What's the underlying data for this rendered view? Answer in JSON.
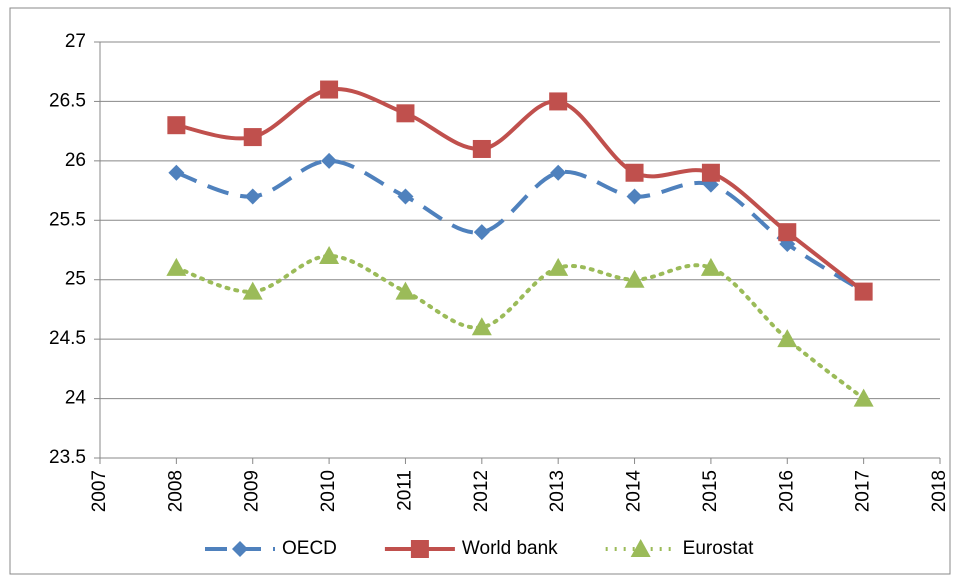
{
  "chart_data": {
    "type": "line",
    "x": [
      2008,
      2009,
      2010,
      2011,
      2012,
      2013,
      2014,
      2015,
      2016,
      2017
    ],
    "series": [
      {
        "name": "OECD",
        "color": "#4f81bd",
        "line_style": "dashed",
        "marker": "diamond",
        "values": [
          25.9,
          25.7,
          26.0,
          25.7,
          25.4,
          25.9,
          25.7,
          25.8,
          25.3,
          24.9
        ]
      },
      {
        "name": "World bank",
        "color": "#c0504d",
        "line_style": "solid",
        "marker": "square",
        "values": [
          26.3,
          26.2,
          26.6,
          26.4,
          26.1,
          26.5,
          25.9,
          25.9,
          25.4,
          24.9
        ]
      },
      {
        "name": "Eurostat",
        "color": "#9bbb59",
        "line_style": "dotted",
        "marker": "triangle",
        "values": [
          25.1,
          24.9,
          25.2,
          24.9,
          24.6,
          25.1,
          25.0,
          25.1,
          24.5,
          24.0
        ]
      }
    ],
    "xlim": [
      2007,
      2018
    ],
    "xticks": [
      2007,
      2008,
      2009,
      2010,
      2011,
      2012,
      2013,
      2014,
      2015,
      2016,
      2017,
      2018
    ],
    "ylim": [
      23.5,
      27
    ],
    "yticks": [
      23.5,
      24,
      24.5,
      25,
      25.5,
      26,
      26.5,
      27
    ],
    "grid": true,
    "smooth": true,
    "legend": "bottom"
  }
}
